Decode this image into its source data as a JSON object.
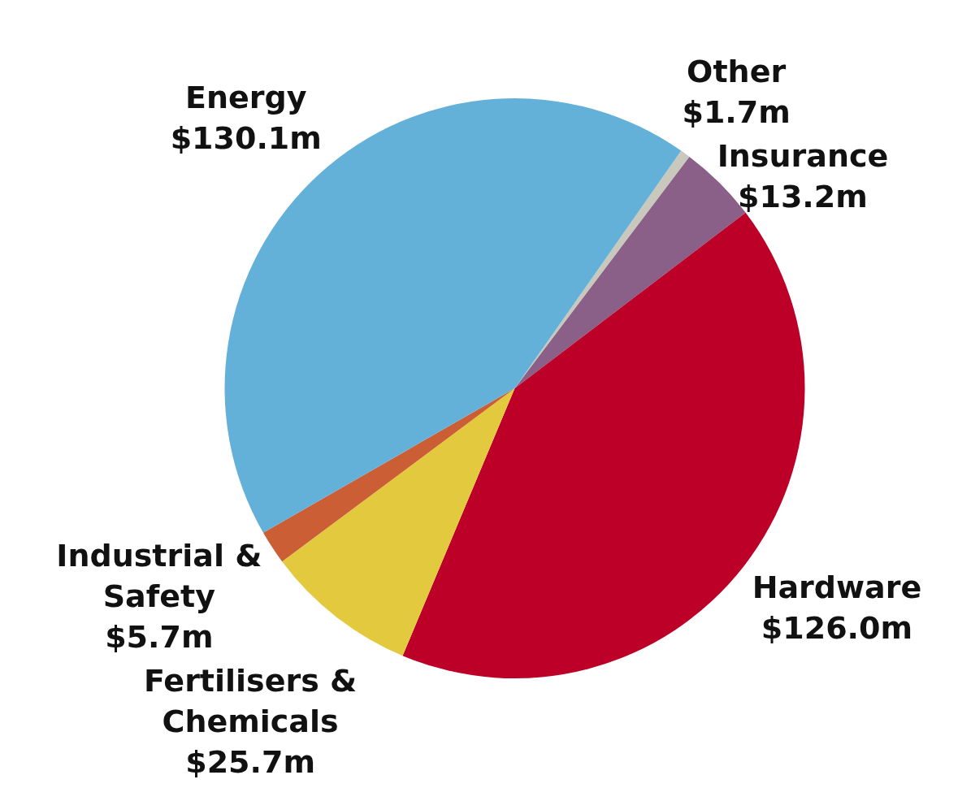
{
  "chart_data": {
    "type": "pie",
    "categories": [
      "Other",
      "Insurance",
      "Hardware",
      "Fertilisers & Chemicals",
      "Industrial & Safety",
      "Energy"
    ],
    "values": [
      1.7,
      13.2,
      126.0,
      25.7,
      5.7,
      130.1
    ],
    "colors": [
      "#c8c9bc",
      "#8a6088",
      "#bc0027",
      "#e2c93e",
      "#cb5e35",
      "#63b0d8"
    ],
    "value_labels": [
      "$1.7m",
      "$13.2m",
      "$126.0m",
      "$25.7m",
      "$5.7m",
      "$130.1m"
    ]
  }
}
